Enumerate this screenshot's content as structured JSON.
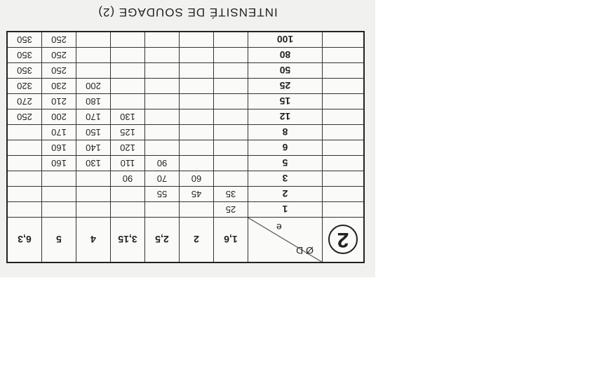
{
  "title": "INTENSITÉ DE SOUDAGE (2)",
  "table": {
    "badge": "2",
    "diameter_label": "Ø D",
    "thickness_label": "e",
    "columns": [
      "1,6",
      "2",
      "2,5",
      "3,15",
      "4",
      "5",
      "6,3"
    ],
    "rows": [
      {
        "e": "1",
        "values": [
          "25",
          "",
          "",
          "",
          "",
          "",
          ""
        ]
      },
      {
        "e": "2",
        "values": [
          "35",
          "45",
          "55",
          "",
          "",
          "",
          ""
        ]
      },
      {
        "e": "3",
        "values": [
          "",
          "60",
          "70",
          "90",
          "",
          "",
          ""
        ]
      },
      {
        "e": "5",
        "values": [
          "",
          "",
          "90",
          "110",
          "130",
          "160",
          ""
        ]
      },
      {
        "e": "6",
        "values": [
          "",
          "",
          "",
          "120",
          "140",
          "160",
          ""
        ]
      },
      {
        "e": "8",
        "values": [
          "",
          "",
          "",
          "125",
          "150",
          "170",
          ""
        ]
      },
      {
        "e": "12",
        "values": [
          "",
          "",
          "",
          "130",
          "170",
          "200",
          "250"
        ]
      },
      {
        "e": "15",
        "values": [
          "",
          "",
          "",
          "",
          "180",
          "210",
          "270"
        ]
      },
      {
        "e": "25",
        "values": [
          "",
          "",
          "",
          "",
          "200",
          "230",
          "320"
        ]
      },
      {
        "e": "50",
        "values": [
          "",
          "",
          "",
          "",
          "",
          "250",
          "350"
        ]
      },
      {
        "e": "80",
        "values": [
          "",
          "",
          "",
          "",
          "",
          "250",
          "350"
        ]
      },
      {
        "e": "100",
        "values": [
          "",
          "",
          "",
          "",
          "",
          "250",
          "350"
        ]
      }
    ]
  }
}
